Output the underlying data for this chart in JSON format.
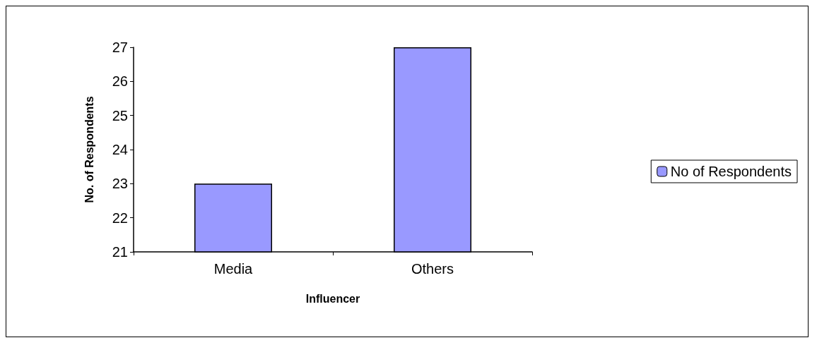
{
  "chart_data": {
    "type": "bar",
    "xlabel": "Influencer",
    "ylabel": "No. of Respondents",
    "categories": [
      "Media",
      "Others"
    ],
    "series": [
      {
        "name": "No of Respondents",
        "color": "#9999ff",
        "values": [
          23,
          27
        ]
      }
    ],
    "ylim": [
      21,
      27
    ],
    "yticks": [
      21,
      22,
      23,
      24,
      25,
      26,
      27
    ],
    "grid": false,
    "legend": "right"
  }
}
